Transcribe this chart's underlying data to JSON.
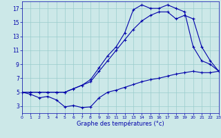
{
  "xlabel": "Graphe des températures (°c)",
  "background_color": "#cce8e8",
  "grid_color": "#99cccc",
  "line_color": "#0000aa",
  "xlim_min": 0,
  "xlim_max": 23,
  "ylim_min": 2,
  "ylim_max": 18,
  "yticks": [
    3,
    5,
    7,
    9,
    11,
    13,
    15,
    17
  ],
  "line1_x": [
    0,
    1,
    2,
    3,
    4,
    5,
    6,
    7,
    8,
    9,
    10,
    11,
    12,
    13,
    14,
    15,
    16,
    17,
    18,
    19,
    20,
    21,
    22,
    23
  ],
  "line1_y": [
    5.0,
    4.7,
    4.2,
    4.4,
    3.9,
    2.9,
    3.1,
    2.8,
    2.9,
    4.2,
    5.0,
    5.3,
    5.7,
    6.1,
    6.5,
    6.8,
    7.0,
    7.3,
    7.6,
    7.8,
    8.0,
    7.8,
    7.8,
    8.0
  ],
  "line2_x": [
    0,
    1,
    2,
    3,
    4,
    5,
    6,
    7,
    8,
    9,
    10,
    11,
    12,
    13,
    14,
    15,
    16,
    17,
    18,
    19,
    20,
    21,
    22,
    23
  ],
  "line2_y": [
    5.0,
    5.0,
    5.0,
    5.0,
    5.0,
    5.0,
    5.5,
    6.0,
    6.8,
    8.5,
    10.2,
    11.5,
    13.5,
    16.8,
    17.5,
    17.0,
    17.0,
    17.5,
    17.0,
    16.5,
    11.5,
    9.5,
    9.0,
    8.0
  ],
  "line3_x": [
    0,
    1,
    2,
    3,
    4,
    5,
    6,
    7,
    8,
    9,
    10,
    11,
    12,
    13,
    14,
    15,
    16,
    17,
    18,
    19,
    20,
    21,
    22,
    23
  ],
  "line3_y": [
    5.0,
    5.0,
    5.0,
    5.0,
    5.0,
    5.0,
    5.5,
    6.0,
    6.5,
    8.0,
    9.5,
    11.0,
    12.5,
    14.0,
    15.2,
    16.0,
    16.5,
    16.5,
    15.5,
    16.0,
    15.5,
    11.5,
    9.5,
    8.0
  ]
}
